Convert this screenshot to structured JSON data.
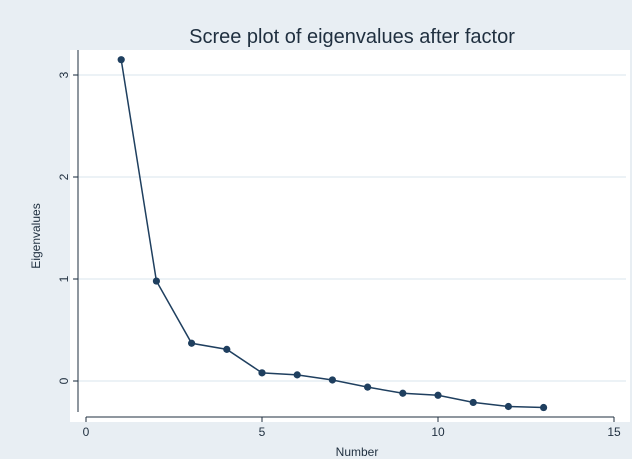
{
  "colors": {
    "outer_background": "#e8eef3",
    "plot_background": "#ffffff",
    "gridline": "#e6eef3",
    "axis": "#1f2f3f",
    "series": "#1f3f5f"
  },
  "chart_data": {
    "type": "line",
    "title": "Scree plot of eigenvalues after factor",
    "xlabel": "Number",
    "ylabel": "Eigenvalues",
    "xlim": [
      0,
      15
    ],
    "ylim": [
      -0.3,
      3.2
    ],
    "x_ticks": [
      0,
      5,
      10,
      15
    ],
    "y_ticks": [
      0,
      1,
      2,
      3
    ],
    "grid": "horizontal",
    "markers": true,
    "series": [
      {
        "x": [
          1,
          2,
          3,
          4,
          5,
          6,
          7,
          8,
          9,
          10,
          11,
          12,
          13
        ],
        "values": [
          3.15,
          0.98,
          0.37,
          0.31,
          0.08,
          0.06,
          0.01,
          -0.06,
          -0.12,
          -0.14,
          -0.21,
          -0.25,
          -0.26
        ]
      }
    ]
  }
}
